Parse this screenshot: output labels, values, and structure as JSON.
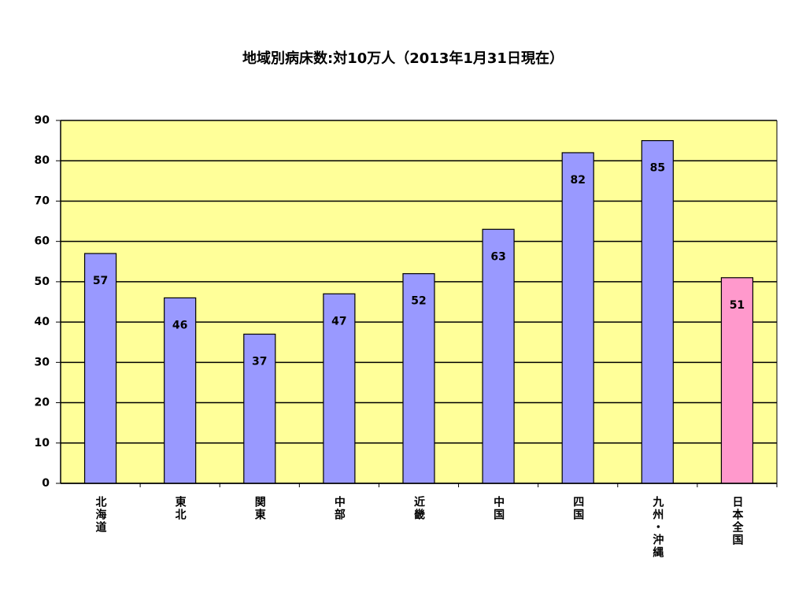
{
  "chart_data": {
    "type": "bar",
    "title": "地域別病床数:対10万人（2013年1月31日現在）",
    "categories": [
      "北海道",
      "東北",
      "関東",
      "中部",
      "近畿",
      "中国",
      "四国",
      "九州・沖縄",
      "日本全国"
    ],
    "values": [
      57,
      46,
      37,
      47,
      52,
      63,
      82,
      85,
      51
    ],
    "colors": [
      "#9999ff",
      "#9999ff",
      "#9999ff",
      "#9999ff",
      "#9999ff",
      "#9999ff",
      "#9999ff",
      "#9999ff",
      "#ff99cc"
    ],
    "background": "#ffff99",
    "ylim": [
      0,
      90
    ],
    "yticks": [
      0,
      10,
      20,
      30,
      40,
      50,
      60,
      70,
      80,
      90
    ],
    "grid": true
  }
}
